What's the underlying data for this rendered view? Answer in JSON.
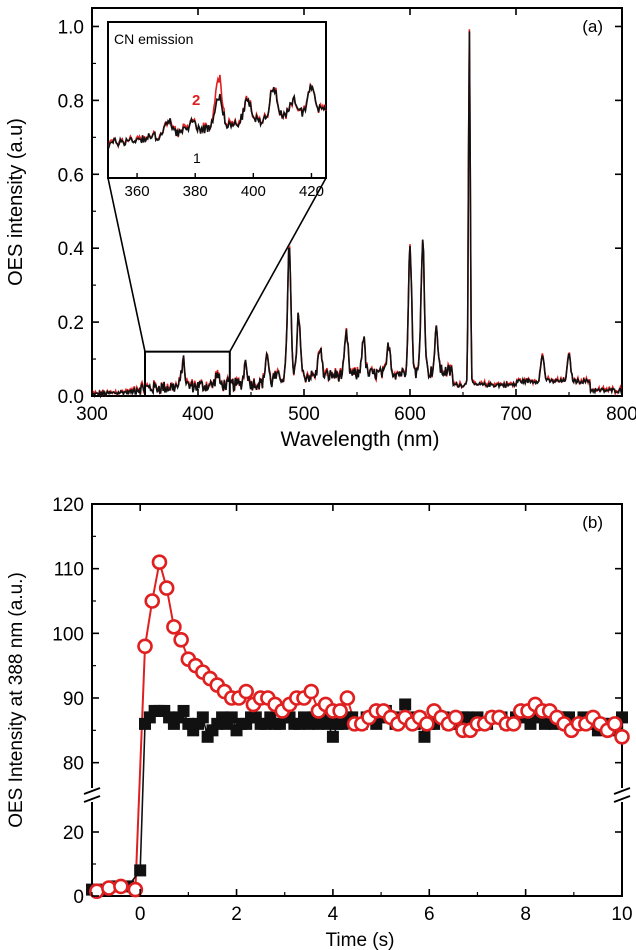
{
  "colors": {
    "black_series": "#111111",
    "red_series": "#e02020",
    "axis": "#000000"
  },
  "chart_data": [
    {
      "type": "line",
      "panel_label": "(a)",
      "xlabel": "Wavelength (nm)",
      "ylabel": "OES intensity (a.u)",
      "xlim": [
        300,
        800
      ],
      "ylim": [
        0,
        1.05
      ],
      "xticks": [
        "300",
        "400",
        "500",
        "600",
        "700",
        "800"
      ],
      "yticks": [
        "0.0",
        "0.2",
        "0.4",
        "0.6",
        "0.8",
        "1.0"
      ],
      "series": [
        {
          "name": "",
          "color": "black"
        },
        {
          "name": "",
          "color": "red"
        }
      ],
      "peaks": [
        {
          "x": 386,
          "y": 0.11
        },
        {
          "x": 418,
          "y": 0.07
        },
        {
          "x": 445,
          "y": 0.1
        },
        {
          "x": 465,
          "y": 0.12
        },
        {
          "x": 486,
          "y": 0.39
        },
        {
          "x": 495,
          "y": 0.21
        },
        {
          "x": 515,
          "y": 0.12
        },
        {
          "x": 540,
          "y": 0.15
        },
        {
          "x": 556,
          "y": 0.14
        },
        {
          "x": 580,
          "y": 0.12
        },
        {
          "x": 600,
          "y": 0.38
        },
        {
          "x": 612,
          "y": 0.4
        },
        {
          "x": 625,
          "y": 0.15
        },
        {
          "x": 656,
          "y": 1.0
        },
        {
          "x": 725,
          "y": 0.11
        },
        {
          "x": 750,
          "y": 0.11
        }
      ],
      "zoom_box": {
        "x": [
          350,
          430
        ],
        "y": [
          0,
          0.12
        ]
      },
      "inset": {
        "title": "CN emission",
        "xlim": [
          350,
          425
        ],
        "xticks": [
          "360",
          "380",
          "400",
          "420"
        ],
        "labels": {
          "red": "2",
          "black": "1"
        },
        "red_peak_x": 388
      }
    },
    {
      "type": "scatter",
      "panel_label": "(b)",
      "xlabel": "Time (s)",
      "ylabel": "OES Intensity at 388 nm (a.u.)",
      "xlim": [
        -1,
        10
      ],
      "ylim_lower": [
        0,
        30
      ],
      "ylim_upper": [
        75,
        120
      ],
      "xticks": [
        "0",
        "2",
        "4",
        "6",
        "8",
        "10"
      ],
      "yticks_lower": [
        "0",
        "20"
      ],
      "yticks_upper": [
        "80",
        "90",
        "100",
        "110",
        "120"
      ],
      "series": [
        {
          "name": "",
          "marker": "filled-square",
          "color": "black",
          "x": [
            -1.0,
            -0.75,
            -0.5,
            -0.25,
            0.0,
            0.1,
            0.2,
            0.3,
            0.4,
            0.5,
            0.6,
            0.7,
            0.8,
            0.9,
            1.0,
            1.1,
            1.2,
            1.3,
            1.4,
            1.5,
            1.6,
            1.7,
            1.8,
            1.9,
            2.0,
            2.1,
            2.2,
            2.3,
            2.4,
            2.5,
            2.6,
            2.7,
            2.8,
            2.9,
            3.0,
            3.1,
            3.2,
            3.3,
            3.4,
            3.5,
            3.6,
            3.7,
            3.8,
            3.9,
            4.0,
            4.1,
            4.2,
            4.3,
            4.4,
            4.5,
            4.6,
            4.7,
            4.8,
            4.9,
            5.0,
            5.1,
            5.2,
            5.3,
            5.4,
            5.5,
            5.6,
            5.7,
            5.8,
            5.9,
            6.0,
            6.1,
            6.2,
            6.3,
            6.4,
            6.5,
            6.6,
            6.7,
            6.8,
            6.9,
            7.0,
            7.1,
            7.2,
            7.3,
            7.4,
            7.5,
            7.6,
            7.7,
            7.8,
            7.9,
            8.0,
            8.1,
            8.2,
            8.3,
            8.4,
            8.5,
            8.6,
            8.7,
            8.8,
            8.9,
            9.0,
            9.1,
            9.2,
            9.3,
            9.4,
            9.5,
            9.6,
            9.7,
            9.8,
            9.9,
            10.0
          ],
          "values": [
            2,
            2,
            3,
            3,
            8,
            86,
            87,
            88,
            88,
            88,
            87,
            86,
            87,
            88,
            86,
            85,
            86,
            87,
            84,
            85,
            86,
            87,
            86,
            87,
            85,
            86,
            86,
            87,
            87,
            86,
            86,
            87,
            86,
            86,
            87,
            87,
            86,
            86,
            87,
            86,
            87,
            86,
            87,
            86,
            84,
            86,
            86,
            87,
            87,
            86,
            86,
            87,
            87,
            86,
            87,
            88,
            87,
            86,
            87,
            89,
            87,
            86,
            87,
            84,
            86,
            86,
            87,
            87,
            86,
            86,
            86,
            87,
            87,
            86,
            87,
            86,
            86,
            87,
            87,
            87,
            86,
            86,
            87,
            87,
            88,
            86,
            87,
            88,
            86,
            87,
            86,
            87,
            87,
            87,
            86,
            86,
            87,
            86,
            86,
            85,
            86,
            86,
            85,
            86,
            87
          ]
        },
        {
          "name": "",
          "marker": "open-circle",
          "color": "red",
          "x": [
            -0.9,
            -0.65,
            -0.4,
            -0.1,
            0.1,
            0.25,
            0.4,
            0.55,
            0.7,
            0.85,
            1.0,
            1.15,
            1.3,
            1.45,
            1.6,
            1.75,
            1.9,
            2.05,
            2.2,
            2.35,
            2.5,
            2.65,
            2.8,
            2.95,
            3.1,
            3.25,
            3.4,
            3.55,
            3.7,
            3.85,
            4.0,
            4.15,
            4.3,
            4.45,
            4.6,
            4.75,
            4.9,
            5.05,
            5.2,
            5.35,
            5.5,
            5.65,
            5.8,
            5.95,
            6.1,
            6.25,
            6.4,
            6.55,
            6.7,
            6.85,
            7.0,
            7.15,
            7.3,
            7.45,
            7.6,
            7.75,
            7.9,
            8.05,
            8.2,
            8.35,
            8.5,
            8.65,
            8.8,
            8.95,
            9.1,
            9.25,
            9.4,
            9.55,
            9.7,
            9.85,
            10.0
          ],
          "values": [
            1.5,
            2.5,
            3,
            2,
            98,
            105,
            111,
            107,
            101,
            99,
            96,
            95,
            94,
            93,
            92,
            91,
            90,
            90,
            91,
            89,
            90,
            90,
            89,
            88,
            89,
            90,
            90,
            91,
            88,
            89,
            88,
            88,
            90,
            86,
            86,
            87,
            88,
            88,
            87,
            86,
            87,
            86,
            87,
            86,
            88,
            87,
            86,
            87,
            85,
            85,
            86,
            86,
            87,
            87,
            86,
            86,
            88,
            88,
            89,
            88,
            88,
            87,
            86,
            85,
            86,
            86,
            87,
            86,
            85,
            86,
            84
          ]
        }
      ]
    }
  ]
}
